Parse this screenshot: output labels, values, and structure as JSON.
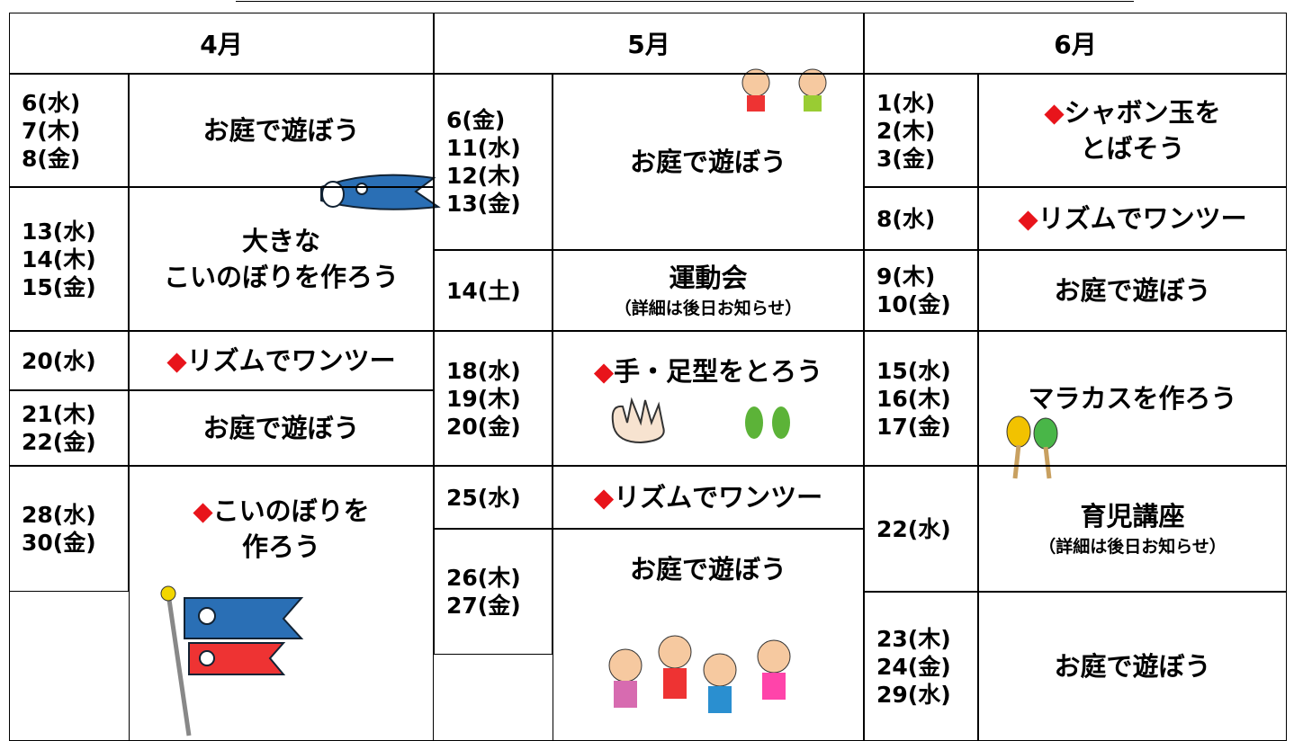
{
  "schedule": {
    "months": [
      {
        "name": "4月",
        "rows": [
          {
            "dates": [
              "6(水)",
              "7(木)",
              "8(金)"
            ],
            "activity": [
              "お庭で遊ぼう"
            ]
          },
          {
            "dates": [
              "13(水)",
              "14(木)",
              "15(金)"
            ],
            "activity": [
              "大きな",
              "こいのぼりを作ろう"
            ]
          },
          {
            "dates": [
              "20(水)"
            ],
            "marker": "◆",
            "activity": [
              "リズムでワンツー"
            ]
          },
          {
            "dates": [
              "21(木)",
              "22(金)"
            ],
            "activity": [
              "お庭で遊ぼう"
            ]
          },
          {
            "dates": [
              "28(水)",
              "30(金)"
            ],
            "marker": "◆",
            "activity": [
              "こいのぼりを",
              "作ろう"
            ]
          }
        ]
      },
      {
        "name": "5月",
        "rows": [
          {
            "dates": [
              "6(金)",
              "11(水)",
              "12(木)",
              "13(金)"
            ],
            "activity": [
              "お庭で遊ぼう"
            ]
          },
          {
            "dates": [
              "14(土)"
            ],
            "activity": [
              "運動会"
            ],
            "note": "（詳細は後日お知らせ）"
          },
          {
            "dates": [
              "18(水)",
              "19(木)",
              "20(金)"
            ],
            "marker": "◆",
            "activity": [
              "手・足型をとろう"
            ]
          },
          {
            "dates": [
              "25(水)"
            ],
            "marker": "◆",
            "activity": [
              "リズムでワンツー"
            ]
          },
          {
            "dates": [
              "26(木)",
              "27(金)"
            ],
            "activity": [
              "お庭で遊ぼう"
            ]
          }
        ]
      },
      {
        "name": "6月",
        "rows": [
          {
            "dates": [
              "1(水)",
              "2(木)",
              "3(金)"
            ],
            "marker": "◆",
            "activity": [
              "シャボン玉を",
              "とばそう"
            ]
          },
          {
            "dates": [
              "8(水)"
            ],
            "marker": "◆",
            "activity": [
              "リズムでワンツー"
            ]
          },
          {
            "dates": [
              "9(木)",
              "10(金)"
            ],
            "activity": [
              "お庭で遊ぼう"
            ]
          },
          {
            "dates": [
              "15(水)",
              "16(木)",
              "17(金)"
            ],
            "activity": [
              "マラカスを作ろう"
            ]
          },
          {
            "dates": [
              "22(水)"
            ],
            "activity": [
              "育児講座"
            ],
            "note": "（詳細は後日お知らせ）"
          },
          {
            "dates": [
              "23(木)",
              "24(金)",
              "29(水)"
            ],
            "activity": [
              "お庭で遊ぼう"
            ]
          }
        ]
      }
    ]
  }
}
